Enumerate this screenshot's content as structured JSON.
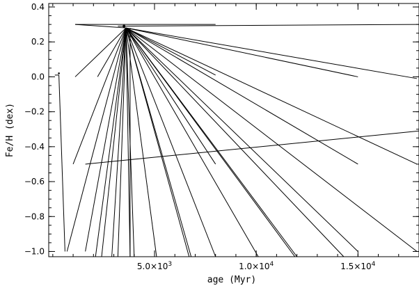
{
  "chart_data": {
    "type": "line",
    "title": "",
    "xlabel": "age (Myr)",
    "ylabel": "Fe/H (dex)",
    "xlim": [
      -200,
      18000
    ],
    "ylim": [
      -1.03,
      0.42
    ],
    "x_major_ticks": [
      {
        "value": 5000,
        "mantissa": "5.0",
        "exponent": "3"
      },
      {
        "value": 10000,
        "mantissa": "1.0",
        "exponent": "4"
      },
      {
        "value": 15000,
        "mantissa": "1.5",
        "exponent": "4"
      }
    ],
    "x_minor_every": 1000,
    "y_major_ticks": [
      {
        "value": 0.4,
        "label": "0.4"
      },
      {
        "value": 0.2,
        "label": "0.2"
      },
      {
        "value": 0.0,
        "label": "0.0"
      },
      {
        "value": -0.2,
        "label": "−0.2"
      },
      {
        "value": -0.4,
        "label": "−0.4"
      },
      {
        "value": -0.6,
        "label": "−0.6"
      },
      {
        "value": -0.8,
        "label": "−0.8"
      },
      {
        "value": -1.0,
        "label": "−1.0"
      }
    ],
    "y_minor_every": 0.05,
    "grid": false,
    "segments": [
      {
        "x": [
          100,
          300
        ],
        "y": [
          0.01,
          0.01
        ]
      },
      {
        "x": [
          300,
          600
        ],
        "y": [
          0.01,
          -1.0
        ]
      },
      {
        "x": [
          1100,
          8000
        ],
        "y": [
          0.3,
          0.3
        ]
      },
      {
        "x": [
          3200,
          18000
        ],
        "y": [
          0.29,
          0.3
        ]
      },
      {
        "x": [
          1100,
          3600
        ],
        "y": [
          0.3,
          0.28
        ]
      },
      {
        "x": [
          3600,
          17900
        ],
        "y": [
          0.28,
          -0.01
        ]
      },
      {
        "x": [
          3600,
          8000
        ],
        "y": [
          0.28,
          0.01
        ]
      },
      {
        "x": [
          3600,
          15000
        ],
        "y": [
          0.28,
          0.0
        ]
      },
      {
        "x": [
          3600,
          1100
        ],
        "y": [
          0.28,
          0.0
        ]
      },
      {
        "x": [
          3600,
          2200
        ],
        "y": [
          0.28,
          0.0
        ]
      },
      {
        "x": [
          3600,
          17900
        ],
        "y": [
          0.28,
          -0.5
        ]
      },
      {
        "x": [
          3600,
          15000
        ],
        "y": [
          0.28,
          -0.5
        ]
      },
      {
        "x": [
          3600,
          8000
        ],
        "y": [
          0.28,
          -0.5
        ]
      },
      {
        "x": [
          3600,
          1000
        ],
        "y": [
          0.28,
          -0.5
        ]
      },
      {
        "x": [
          1600,
          18000
        ],
        "y": [
          -0.5,
          -0.31
        ]
      },
      {
        "x": [
          3600,
          17900
        ],
        "y": [
          0.28,
          -1.0
        ]
      },
      {
        "x": [
          3600,
          15000
        ],
        "y": [
          0.28,
          -1.0
        ]
      },
      {
        "x": [
          3600,
          14300
        ],
        "y": [
          0.28,
          -1.03
        ]
      },
      {
        "x": [
          3600,
          12000
        ],
        "y": [
          0.28,
          -1.03
        ]
      },
      {
        "x": [
          3600,
          11900
        ],
        "y": [
          0.28,
          -1.03
        ]
      },
      {
        "x": [
          3600,
          10100
        ],
        "y": [
          0.28,
          -1.03
        ]
      },
      {
        "x": [
          3600,
          8000
        ],
        "y": [
          0.28,
          -1.03
        ]
      },
      {
        "x": [
          3600,
          6800
        ],
        "y": [
          0.28,
          -1.03
        ]
      },
      {
        "x": [
          3600,
          6700
        ],
        "y": [
          0.28,
          -1.03
        ]
      },
      {
        "x": [
          3600,
          5100
        ],
        "y": [
          0.28,
          -1.03
        ]
      },
      {
        "x": [
          3600,
          4000
        ],
        "y": [
          0.28,
          -1.03
        ]
      },
      {
        "x": [
          3600,
          3800
        ],
        "y": [
          0.28,
          -1.03
        ]
      },
      {
        "x": [
          3600,
          3200
        ],
        "y": [
          0.28,
          -1.03
        ]
      },
      {
        "x": [
          3600,
          2900
        ],
        "y": [
          0.28,
          -1.03
        ]
      },
      {
        "x": [
          3600,
          2400
        ],
        "y": [
          0.28,
          -1.03
        ]
      },
      {
        "x": [
          3600,
          2100
        ],
        "y": [
          0.28,
          -1.03
        ]
      },
      {
        "x": [
          3600,
          1600
        ],
        "y": [
          0.28,
          -1.0
        ]
      },
      {
        "x": [
          3600,
          700
        ],
        "y": [
          0.28,
          -1.0
        ]
      },
      {
        "x": [
          3800,
          3800
        ],
        "y": [
          0.28,
          -1.03
        ]
      }
    ]
  }
}
